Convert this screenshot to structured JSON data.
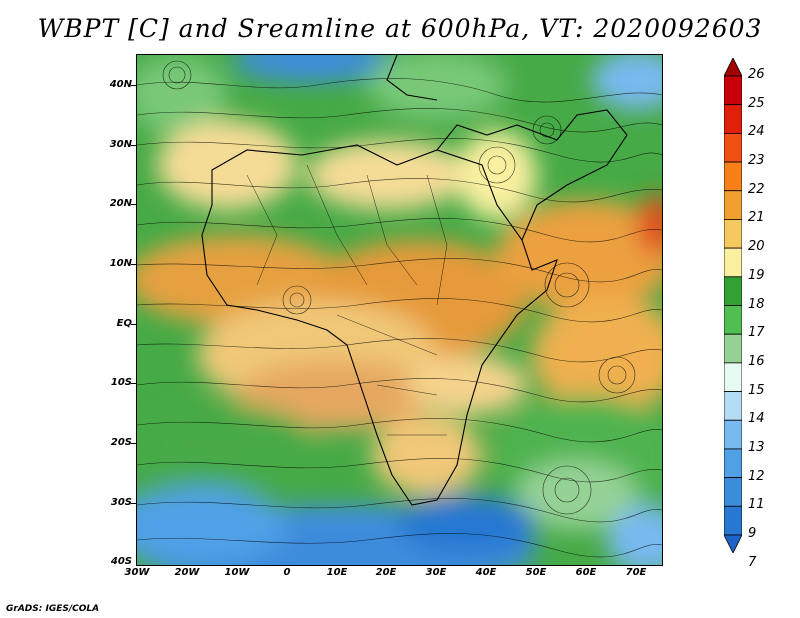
{
  "title": "WBPT [C] and Sreamline at 600hPa, VT: 2020092603",
  "credit": "GrADS: IGES/COLA",
  "lat_labels": [
    "40N",
    "30N",
    "20N",
    "10N",
    "EQ",
    "10S",
    "20S",
    "30S",
    "40S"
  ],
  "lon_labels": [
    "30W",
    "20W",
    "10W",
    "0",
    "10E",
    "20E",
    "30E",
    "40E",
    "50E",
    "60E",
    "70E"
  ],
  "colorbar": {
    "labels": [
      "26",
      "25",
      "24",
      "23",
      "22",
      "21",
      "20",
      "19",
      "18",
      "17",
      "16",
      "15",
      "14",
      "13",
      "12",
      "11",
      "9",
      "7"
    ],
    "colors": [
      "#a50000",
      "#c8000a",
      "#e1200a",
      "#f05014",
      "#f88018",
      "#f0a030",
      "#f5c860",
      "#faf0a0",
      "#32a032",
      "#50be50",
      "#96d296",
      "#e6faf0",
      "#b4dcf5",
      "#78b9f0",
      "#50a0e6",
      "#3c8cdc",
      "#2878d2",
      "#1e64c8"
    ]
  }
}
